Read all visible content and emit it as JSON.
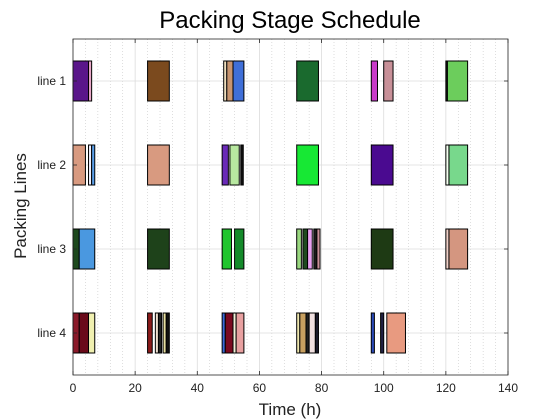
{
  "chart_data": {
    "type": "gantt",
    "title": "Packing Stage Schedule",
    "xlabel": "Time (h)",
    "ylabel": "Packing Lines",
    "xlim": [
      0,
      140
    ],
    "x_ticks": [
      "0",
      "20",
      "40",
      "60",
      "80",
      "100",
      "120",
      "140"
    ],
    "grid": true,
    "lines": [
      {
        "label": "line 1",
        "tasks": [
          {
            "start": 0,
            "end": 5,
            "color": "#5a168a"
          },
          {
            "start": 5,
            "end": 6,
            "color": "#e8a8c8"
          },
          {
            "start": 24,
            "end": 31,
            "color": "#7b4a1e"
          },
          {
            "start": 48.5,
            "end": 49.5,
            "color": "#f0e0c0"
          },
          {
            "start": 49.5,
            "end": 51.5,
            "color": "#c89570"
          },
          {
            "start": 51.5,
            "end": 55,
            "color": "#3f6fd8"
          },
          {
            "start": 72,
            "end": 79,
            "color": "#1a6a2e"
          },
          {
            "start": 96,
            "end": 98,
            "color": "#c83ac8"
          },
          {
            "start": 100,
            "end": 103,
            "color": "#c89098"
          },
          {
            "start": 120,
            "end": 120.5,
            "color": "#1a1a1a"
          },
          {
            "start": 120.5,
            "end": 127,
            "color": "#6ccd5c"
          }
        ]
      },
      {
        "label": "line 2",
        "tasks": [
          {
            "start": 0,
            "end": 4,
            "color": "#d89a80"
          },
          {
            "start": 5,
            "end": 6,
            "color": "#f0f0ff"
          },
          {
            "start": 6,
            "end": 7,
            "color": "#5a9ee8"
          },
          {
            "start": 24,
            "end": 31,
            "color": "#d89a80"
          },
          {
            "start": 48,
            "end": 50,
            "color": "#6a2ab8"
          },
          {
            "start": 50.5,
            "end": 53.5,
            "color": "#b8e8a0"
          },
          {
            "start": 54,
            "end": 54.8,
            "color": "#111111"
          },
          {
            "start": 72,
            "end": 79,
            "color": "#17e834"
          },
          {
            "start": 96,
            "end": 103,
            "color": "#4a0a90"
          },
          {
            "start": 120,
            "end": 121,
            "color": "#f4fff0"
          },
          {
            "start": 121,
            "end": 127,
            "color": "#78d88c"
          }
        ]
      },
      {
        "label": "line 3",
        "tasks": [
          {
            "start": 0,
            "end": 2,
            "color": "#1e4a1e"
          },
          {
            "start": 2,
            "end": 7,
            "color": "#4a98e0"
          },
          {
            "start": 24,
            "end": 31,
            "color": "#1e421a"
          },
          {
            "start": 48,
            "end": 51,
            "color": "#21c52e"
          },
          {
            "start": 52,
            "end": 55,
            "color": "#148a2a"
          },
          {
            "start": 72,
            "end": 73.5,
            "color": "#9ad880"
          },
          {
            "start": 74,
            "end": 75.5,
            "color": "#1e4a1e"
          },
          {
            "start": 75.5,
            "end": 77,
            "color": "#e8a0f0"
          },
          {
            "start": 77.5,
            "end": 78.5,
            "color": "#1a1a1a"
          },
          {
            "start": 78.5,
            "end": 79.5,
            "color": "#c89098"
          },
          {
            "start": 96,
            "end": 103,
            "color": "#1e3a14"
          },
          {
            "start": 120,
            "end": 121,
            "color": "#f0d0c8"
          },
          {
            "start": 121,
            "end": 127,
            "color": "#d49680"
          }
        ]
      },
      {
        "label": "line 4",
        "tasks": [
          {
            "start": 0,
            "end": 2,
            "color": "#8a1a2a"
          },
          {
            "start": 2,
            "end": 5,
            "color": "#6a0a1a"
          },
          {
            "start": 5,
            "end": 7,
            "color": "#f0f0b0"
          },
          {
            "start": 24,
            "end": 25.5,
            "color": "#8a1a1a"
          },
          {
            "start": 26.5,
            "end": 27.5,
            "color": "#f0e0d0"
          },
          {
            "start": 27.5,
            "end": 28.5,
            "color": "#222222"
          },
          {
            "start": 29,
            "end": 30,
            "color": "#e8e0a0"
          },
          {
            "start": 30,
            "end": 31,
            "color": "#111111"
          },
          {
            "start": 48,
            "end": 49,
            "color": "#3a6ad8"
          },
          {
            "start": 49,
            "end": 51.5,
            "color": "#7a0a20"
          },
          {
            "start": 51.5,
            "end": 52.5,
            "color": "#f0f0d8"
          },
          {
            "start": 52.5,
            "end": 55,
            "color": "#e8a0a0"
          },
          {
            "start": 72,
            "end": 73,
            "color": "#f0e8b0"
          },
          {
            "start": 73,
            "end": 75,
            "color": "#c8a060"
          },
          {
            "start": 75,
            "end": 76,
            "color": "#222222"
          },
          {
            "start": 76,
            "end": 78,
            "color": "#f0e0e0"
          },
          {
            "start": 78,
            "end": 79,
            "color": "#1a1a2a"
          },
          {
            "start": 96,
            "end": 97,
            "color": "#2a4ab8"
          },
          {
            "start": 99,
            "end": 100,
            "color": "#222244"
          },
          {
            "start": 101,
            "end": 107,
            "color": "#e89a80"
          }
        ]
      }
    ]
  }
}
